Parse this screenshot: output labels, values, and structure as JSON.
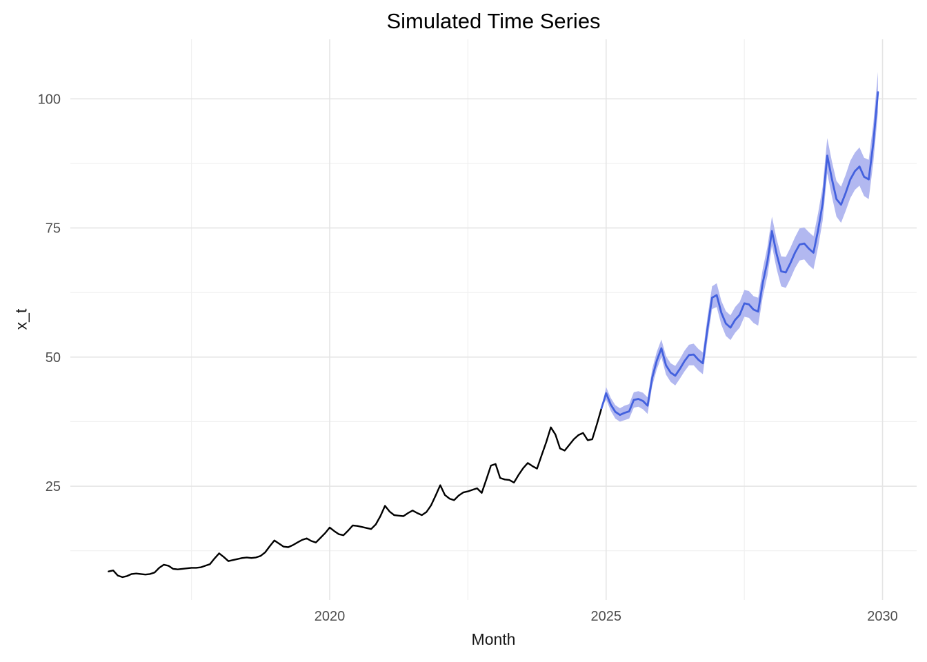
{
  "chart_data": {
    "type": "line",
    "title": "Simulated Time Series",
    "xlabel": "Month",
    "ylabel": "x_t",
    "legend_position": "none",
    "grid": true,
    "x_domain": [
      2015.309,
      2030.617
    ],
    "y_domain": [
      2.98,
      111.53
    ],
    "x_ticks": {
      "labels": [
        "2020",
        "2025",
        "2030"
      ],
      "values": [
        2020,
        2025,
        2030
      ]
    },
    "y_ticks": {
      "labels": [
        "25",
        "50",
        "75",
        "100"
      ],
      "values": [
        25,
        50,
        75,
        100
      ]
    },
    "x_minor": [
      2017.5,
      2022.5,
      2027.5
    ],
    "y_minor": [
      12.5,
      37.5,
      62.5,
      87.5
    ],
    "frequency": "monthly",
    "colors": {
      "observed_line": "#000000",
      "forecast_line": "#4361DE",
      "ribbon": "#B2B8F0",
      "grid_major": "#E5E5E5",
      "grid_minor": "#F0F0F0",
      "tick_text": "#4D4D4D",
      "axis_title_text": "#1A1A1A",
      "title_text": "#000000",
      "background": "#FFFFFF"
    },
    "series": [
      {
        "name": "observed",
        "start_decimal_year": 2016.0,
        "values": [
          8.5,
          8.7,
          7.7,
          7.4,
          7.6,
          8.0,
          8.1,
          8.0,
          7.9,
          8.0,
          8.3,
          9.2,
          9.8,
          9.6,
          9.0,
          8.9,
          9.0,
          9.1,
          9.2,
          9.2,
          9.3,
          9.6,
          9.9,
          11.0,
          12.0,
          11.3,
          10.5,
          10.7,
          10.9,
          11.1,
          11.2,
          11.1,
          11.2,
          11.5,
          12.2,
          13.4,
          14.5,
          13.9,
          13.3,
          13.2,
          13.6,
          14.1,
          14.6,
          14.9,
          14.4,
          14.1,
          15.0,
          15.9,
          17.0,
          16.3,
          15.7,
          15.5,
          16.4,
          17.4,
          17.3,
          17.1,
          16.9,
          16.7,
          17.6,
          19.2,
          21.2,
          20.1,
          19.4,
          19.3,
          19.2,
          19.8,
          20.3,
          19.8,
          19.4,
          20.0,
          21.3,
          23.2,
          25.2,
          23.3,
          22.6,
          22.3,
          23.2,
          23.8,
          24.0,
          24.3,
          24.6,
          23.7,
          26.3,
          29.0,
          29.3,
          26.6,
          26.3,
          26.2,
          25.7,
          27.2,
          28.5,
          29.5,
          28.9,
          28.4,
          31.0,
          33.5,
          36.4,
          35.0,
          32.3,
          31.9,
          33.0,
          34.1,
          34.9,
          35.3,
          33.9,
          34.1,
          37.0,
          40.1
        ]
      },
      {
        "name": "forecast",
        "start_decimal_year": 2024.916667,
        "values": [
          40.1,
          43.0,
          40.8,
          39.4,
          38.8,
          39.2,
          39.5,
          41.7,
          41.9,
          41.5,
          40.6,
          46.0,
          49.3,
          51.7,
          48.4,
          47.0,
          46.4,
          47.7,
          49.2,
          50.4,
          50.5,
          49.5,
          48.8,
          55.5,
          61.5,
          62.0,
          58.6,
          56.5,
          55.7,
          57.2,
          58.2,
          60.4,
          60.2,
          59.2,
          58.8,
          64.4,
          68.5,
          74.4,
          70.0,
          66.6,
          66.4,
          68.2,
          70.2,
          71.8,
          72.0,
          71.0,
          70.2,
          74.5,
          79.7,
          89.0,
          84.5,
          80.6,
          79.5,
          81.8,
          84.4,
          86.0,
          86.9,
          84.9,
          84.4,
          91.5,
          101.3
        ],
        "lower": [
          40.1,
          41.8,
          39.6,
          38.1,
          37.5,
          37.8,
          38.1,
          40.2,
          40.4,
          39.9,
          39.0,
          44.4,
          47.6,
          50.0,
          46.6,
          45.2,
          44.5,
          45.8,
          47.2,
          48.4,
          48.4,
          47.4,
          46.7,
          53.3,
          59.3,
          59.7,
          56.3,
          54.1,
          53.3,
          54.7,
          55.7,
          57.8,
          57.6,
          56.6,
          56.1,
          61.7,
          65.7,
          71.6,
          67.1,
          63.7,
          63.4,
          65.2,
          67.2,
          68.7,
          68.9,
          67.8,
          67.0,
          71.2,
          76.4,
          85.6,
          81.1,
          77.2,
          76.0,
          78.3,
          80.8,
          82.4,
          83.2,
          81.2,
          80.6,
          87.7,
          97.4
        ],
        "upper": [
          40.1,
          44.2,
          42.1,
          40.7,
          40.1,
          40.6,
          40.9,
          43.2,
          43.4,
          43.1,
          42.2,
          47.7,
          51.0,
          53.4,
          50.2,
          48.8,
          48.3,
          49.6,
          51.2,
          52.4,
          52.6,
          51.6,
          50.9,
          57.7,
          63.7,
          64.3,
          60.9,
          58.9,
          58.1,
          59.7,
          60.7,
          63.0,
          62.8,
          61.8,
          61.5,
          67.1,
          71.3,
          77.2,
          72.9,
          69.5,
          69.4,
          71.2,
          73.2,
          74.9,
          75.1,
          74.2,
          73.4,
          77.8,
          83.0,
          92.4,
          87.9,
          84.1,
          83.0,
          85.3,
          88.0,
          89.6,
          90.6,
          88.6,
          88.2,
          95.3,
          105.2
        ]
      }
    ]
  }
}
